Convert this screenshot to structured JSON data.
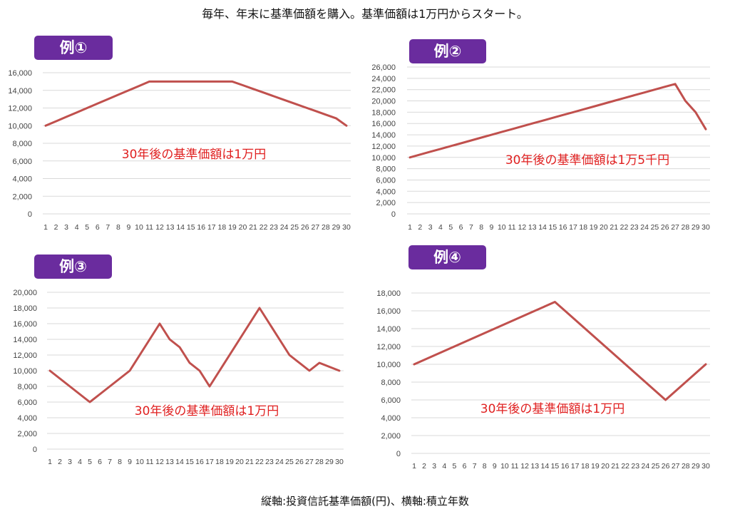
{
  "page_title": "毎年、年末に基準価額を購入。基準価額は1万円からスタート。",
  "footer_note": "縦軸:投資信託基準価額(円)、横軸:積立年数",
  "colors": {
    "line": "#c0504d",
    "badge": "#6a2c9e",
    "note": "#e02020",
    "grid": "#d9d9d9"
  },
  "chart_data": [
    {
      "type": "line",
      "badge": "例①",
      "note": "30年後の基準価額は1万円",
      "categories": [
        1,
        2,
        3,
        4,
        5,
        6,
        7,
        8,
        9,
        10,
        11,
        12,
        13,
        14,
        15,
        16,
        17,
        18,
        19,
        20,
        21,
        22,
        23,
        24,
        25,
        26,
        27,
        28,
        29,
        30
      ],
      "values": [
        10000,
        10500,
        11000,
        11500,
        12000,
        12500,
        13000,
        13500,
        14000,
        14500,
        15000,
        15000,
        15000,
        15000,
        15000,
        15000,
        15000,
        15000,
        15000,
        14583,
        14167,
        13750,
        13333,
        12917,
        12500,
        12083,
        11667,
        11250,
        10833,
        10000
      ],
      "ylim": [
        0,
        16000
      ],
      "yticks": [
        0,
        2000,
        4000,
        6000,
        8000,
        10000,
        12000,
        14000,
        16000
      ],
      "ytick_labels": [
        "0",
        "2,000",
        "4,000",
        "6,000",
        "8,000",
        "10,000",
        "12,000",
        "14,000",
        "16,000"
      ],
      "grid": true
    },
    {
      "type": "line",
      "badge": "例②",
      "note": "30年後の基準価額は1万5千円",
      "categories": [
        1,
        2,
        3,
        4,
        5,
        6,
        7,
        8,
        9,
        10,
        11,
        12,
        13,
        14,
        15,
        16,
        17,
        18,
        19,
        20,
        21,
        22,
        23,
        24,
        25,
        26,
        27,
        28,
        29,
        30
      ],
      "values": [
        10000,
        10500,
        11000,
        11500,
        12000,
        12500,
        13000,
        13500,
        14000,
        14500,
        15000,
        15500,
        16000,
        16500,
        17000,
        17500,
        18000,
        18500,
        19000,
        19500,
        20000,
        20500,
        21000,
        21500,
        22000,
        22500,
        23000,
        20000,
        18000,
        15000
      ],
      "ylim": [
        0,
        26000
      ],
      "yticks": [
        0,
        2000,
        4000,
        6000,
        8000,
        10000,
        12000,
        14000,
        16000,
        18000,
        20000,
        22000,
        24000,
        26000
      ],
      "ytick_labels": [
        "0",
        "2,000",
        "4,000",
        "6,000",
        "8,000",
        "10,000",
        "12,000",
        "14,000",
        "16,000",
        "18,000",
        "20,000",
        "22,000",
        "24,000",
        "26,000"
      ],
      "grid": true
    },
    {
      "type": "line",
      "badge": "例③",
      "note": "30年後の基準価額は1万円",
      "categories": [
        1,
        2,
        3,
        4,
        5,
        6,
        7,
        8,
        9,
        10,
        11,
        12,
        13,
        14,
        15,
        16,
        17,
        18,
        19,
        20,
        21,
        22,
        23,
        24,
        25,
        26,
        27,
        28,
        29,
        30
      ],
      "values": [
        10000,
        9000,
        8000,
        7000,
        6000,
        7000,
        8000,
        9000,
        10000,
        12000,
        14000,
        16000,
        14000,
        13000,
        11000,
        10000,
        8000,
        10000,
        12000,
        14000,
        16000,
        18000,
        16000,
        14000,
        12000,
        11000,
        10000,
        11000,
        10500,
        10000
      ],
      "ylim": [
        0,
        20000
      ],
      "yticks": [
        0,
        2000,
        4000,
        6000,
        8000,
        10000,
        12000,
        14000,
        16000,
        18000,
        20000
      ],
      "ytick_labels": [
        "0",
        "2,000",
        "4,000",
        "6,000",
        "8,000",
        "10,000",
        "12,000",
        "14,000",
        "16,000",
        "18,000",
        "20,000"
      ],
      "grid": true
    },
    {
      "type": "line",
      "badge": "例④",
      "note": "30年後の基準価額は1万円",
      "categories": [
        1,
        2,
        3,
        4,
        5,
        6,
        7,
        8,
        9,
        10,
        11,
        12,
        13,
        14,
        15,
        16,
        17,
        18,
        19,
        20,
        21,
        22,
        23,
        24,
        25,
        26,
        27,
        28,
        29,
        30
      ],
      "values": [
        10000,
        10500,
        11000,
        11500,
        12000,
        12500,
        13000,
        13500,
        14000,
        14500,
        15000,
        15500,
        16000,
        16500,
        17000,
        16000,
        15000,
        14000,
        13000,
        12000,
        11000,
        10000,
        9000,
        8000,
        7000,
        6000,
        7000,
        8000,
        9000,
        10000
      ],
      "ylim": [
        0,
        18000
      ],
      "yticks": [
        0,
        2000,
        4000,
        6000,
        8000,
        10000,
        12000,
        14000,
        16000,
        18000
      ],
      "ytick_labels": [
        "0",
        "2,000",
        "4,000",
        "6,000",
        "8,000",
        "10,000",
        "12,000",
        "14,000",
        "16,000",
        "18,000"
      ],
      "grid": true
    }
  ]
}
